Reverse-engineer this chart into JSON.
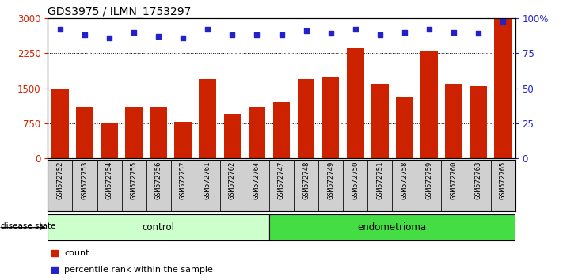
{
  "title": "GDS3975 / ILMN_1753297",
  "samples": [
    "GSM572752",
    "GSM572753",
    "GSM572754",
    "GSM572755",
    "GSM572756",
    "GSM572757",
    "GSM572761",
    "GSM572762",
    "GSM572764",
    "GSM572747",
    "GSM572748",
    "GSM572749",
    "GSM572750",
    "GSM572751",
    "GSM572758",
    "GSM572759",
    "GSM572760",
    "GSM572763",
    "GSM572765"
  ],
  "counts": [
    1500,
    1100,
    750,
    1100,
    1100,
    780,
    1700,
    950,
    1100,
    1200,
    1700,
    1750,
    2350,
    1600,
    1300,
    2280,
    1600,
    1550,
    3000
  ],
  "percentiles": [
    92,
    88,
    86,
    90,
    87,
    86,
    92,
    88,
    88,
    88,
    91,
    89,
    92,
    88,
    90,
    92,
    90,
    89,
    98
  ],
  "bar_color": "#cc2200",
  "dot_color": "#2222cc",
  "ylim_left": [
    0,
    3000
  ],
  "ylim_right": [
    0,
    100
  ],
  "yticks_left": [
    0,
    750,
    1500,
    2250,
    3000
  ],
  "ytick_labels_left": [
    "0",
    "750",
    "1500",
    "2250",
    "3000"
  ],
  "yticks_right": [
    0,
    25,
    50,
    75,
    100
  ],
  "ytick_labels_right": [
    "0",
    "25",
    "50",
    "75",
    "100%"
  ],
  "n_control": 9,
  "n_endo": 10,
  "control_color": "#ccffcc",
  "endometrioma_color": "#44dd44",
  "disease_label": "disease state",
  "control_label": "control",
  "endometrioma_label": "endometrioma",
  "legend_count_label": "count",
  "legend_pct_label": "percentile rank within the sample",
  "xtick_bg_color": "#d0d0d0",
  "plot_bg": "#ffffff"
}
